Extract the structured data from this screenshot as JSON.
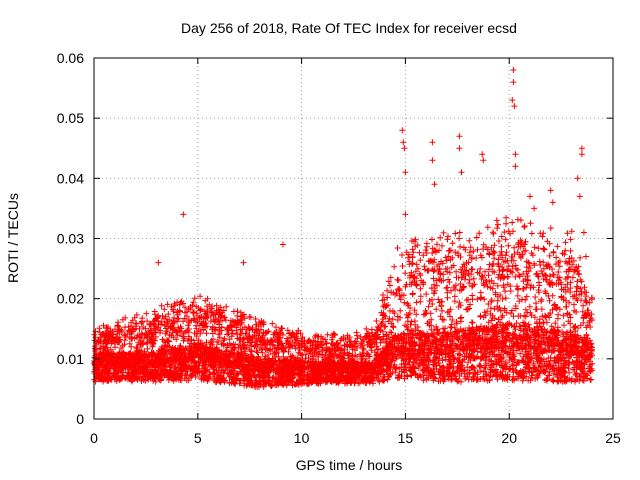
{
  "chart_data": {
    "type": "scatter",
    "title": "Day 256 of 2018, Rate Of TEC Index for receiver ecsd",
    "xlabel": "GPS time / hours",
    "ylabel": "ROTI / TECUs",
    "xlim": [
      0,
      25
    ],
    "ylim": [
      0,
      0.06
    ],
    "xticks": [
      0,
      5,
      10,
      15,
      20,
      25
    ],
    "xtick_labels": [
      "0",
      "5",
      "10",
      "15",
      "20",
      "25"
    ],
    "yticks": [
      0,
      0.01,
      0.02,
      0.03,
      0.04,
      0.05,
      0.06
    ],
    "ytick_labels": [
      "0",
      "0.01",
      "0.02",
      "0.03",
      "0.04",
      "0.05",
      "0.06"
    ],
    "grid": true,
    "marker": "+",
    "series": [
      {
        "name": "ROTI",
        "color": "#ff0000",
        "x_range": [
          0,
          24
        ],
        "profile": [
          {
            "t": 0.0,
            "low": 0.005,
            "mid": 0.009,
            "high": 0.014
          },
          {
            "t": 3.0,
            "low": 0.005,
            "mid": 0.009,
            "high": 0.017
          },
          {
            "t": 5.0,
            "low": 0.005,
            "mid": 0.01,
            "high": 0.019
          },
          {
            "t": 8.0,
            "low": 0.004,
            "mid": 0.008,
            "high": 0.015
          },
          {
            "t": 11.0,
            "low": 0.005,
            "mid": 0.008,
            "high": 0.013
          },
          {
            "t": 13.5,
            "low": 0.005,
            "mid": 0.008,
            "high": 0.014
          },
          {
            "t": 14.5,
            "low": 0.005,
            "mid": 0.011,
            "high": 0.026
          },
          {
            "t": 17.0,
            "low": 0.004,
            "mid": 0.011,
            "high": 0.028
          },
          {
            "t": 20.0,
            "low": 0.004,
            "mid": 0.012,
            "high": 0.03
          },
          {
            "t": 23.0,
            "low": 0.004,
            "mid": 0.011,
            "high": 0.028
          },
          {
            "t": 24.0,
            "low": 0.005,
            "mid": 0.01,
            "high": 0.019
          }
        ],
        "points_per_hour": 260,
        "outliers": [
          {
            "x": 4.3,
            "y": 0.034
          },
          {
            "x": 9.1,
            "y": 0.029
          },
          {
            "x": 3.1,
            "y": 0.026
          },
          {
            "x": 7.2,
            "y": 0.026
          },
          {
            "x": 14.85,
            "y": 0.048
          },
          {
            "x": 14.9,
            "y": 0.046
          },
          {
            "x": 14.95,
            "y": 0.045
          },
          {
            "x": 15.0,
            "y": 0.041
          },
          {
            "x": 15.0,
            "y": 0.034
          },
          {
            "x": 16.3,
            "y": 0.046
          },
          {
            "x": 16.3,
            "y": 0.043
          },
          {
            "x": 16.4,
            "y": 0.039
          },
          {
            "x": 17.6,
            "y": 0.047
          },
          {
            "x": 17.6,
            "y": 0.045
          },
          {
            "x": 17.7,
            "y": 0.041
          },
          {
            "x": 18.7,
            "y": 0.044
          },
          {
            "x": 18.75,
            "y": 0.043
          },
          {
            "x": 20.2,
            "y": 0.058
          },
          {
            "x": 20.2,
            "y": 0.056
          },
          {
            "x": 20.15,
            "y": 0.053
          },
          {
            "x": 20.25,
            "y": 0.052
          },
          {
            "x": 20.3,
            "y": 0.044
          },
          {
            "x": 20.3,
            "y": 0.042
          },
          {
            "x": 21.0,
            "y": 0.037
          },
          {
            "x": 21.2,
            "y": 0.035
          },
          {
            "x": 22.0,
            "y": 0.038
          },
          {
            "x": 22.1,
            "y": 0.036
          },
          {
            "x": 23.5,
            "y": 0.045
          },
          {
            "x": 23.5,
            "y": 0.044
          },
          {
            "x": 23.3,
            "y": 0.04
          },
          {
            "x": 23.4,
            "y": 0.037
          },
          {
            "x": 23.6,
            "y": 0.031
          },
          {
            "x": 23.7,
            "y": 0.027
          }
        ]
      }
    ]
  }
}
